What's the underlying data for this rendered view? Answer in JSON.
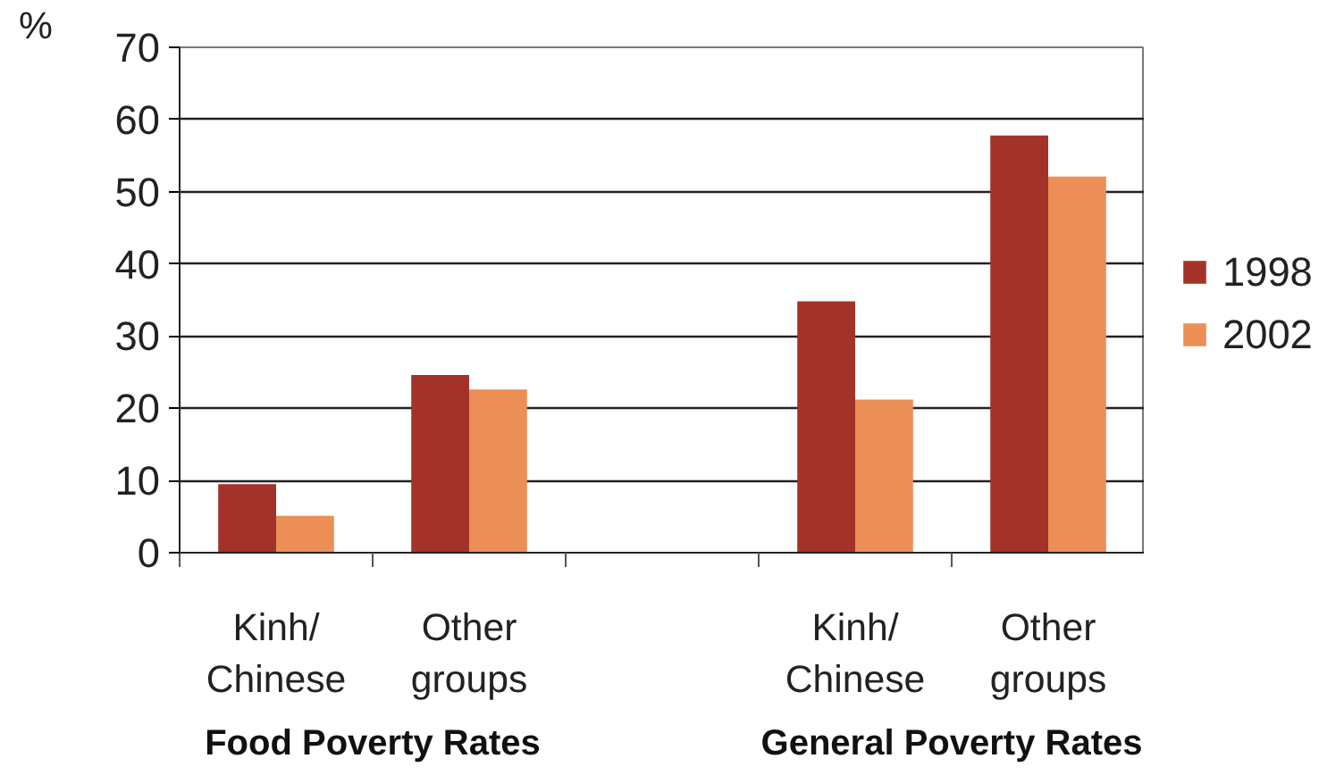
{
  "chart_data": {
    "type": "bar",
    "ylabel": "%",
    "categories": [
      "Kinh/\nChinese",
      "Other\ngroups",
      null,
      "Kinh/\nChinese",
      "Other\ngroups"
    ],
    "series": [
      {
        "name": "1998",
        "color": "#a3332a",
        "values": [
          9.5,
          24.6,
          null,
          34.8,
          57.8
        ]
      },
      {
        "name": "2002",
        "color": "#eb8f57",
        "values": [
          5.1,
          22.6,
          null,
          21.2,
          52.1
        ]
      }
    ],
    "ylim": [
      0,
      70
    ],
    "yticks": [
      0,
      10,
      20,
      30,
      40,
      50,
      60,
      70
    ],
    "grid": "y",
    "legend": "right",
    "annotations": [
      "Food Poverty Rates",
      "General Poverty Rates"
    ]
  }
}
